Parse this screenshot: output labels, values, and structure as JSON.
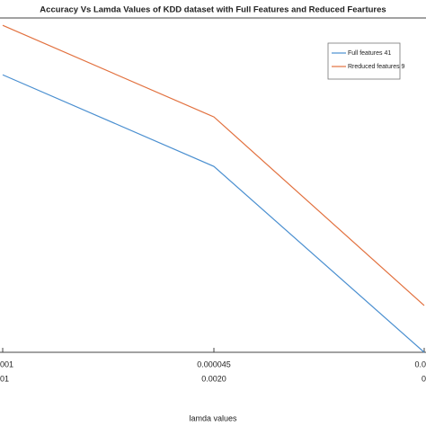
{
  "chart_data": {
    "type": "line",
    "title": "Accuracy Vs Lamda Values of  KDD dataset with Full Features  and Reduced Feartures",
    "x_label": "lamda values",
    "categories": [
      "001",
      "0.000045",
      "0.0"
    ],
    "categories_row2": [
      "01",
      "0.0020",
      "0"
    ],
    "series": [
      {
        "name": "Full features 41",
        "color": "#4a8fd0",
        "values": [
          0.83,
          0.556,
          0.0
        ]
      },
      {
        "name": "Rreduced features 9",
        "color": "#e2713f",
        "values": [
          0.978,
          0.704,
          0.14
        ]
      }
    ],
    "ylim": [
      0,
      1
    ],
    "legend": "upper-right"
  }
}
